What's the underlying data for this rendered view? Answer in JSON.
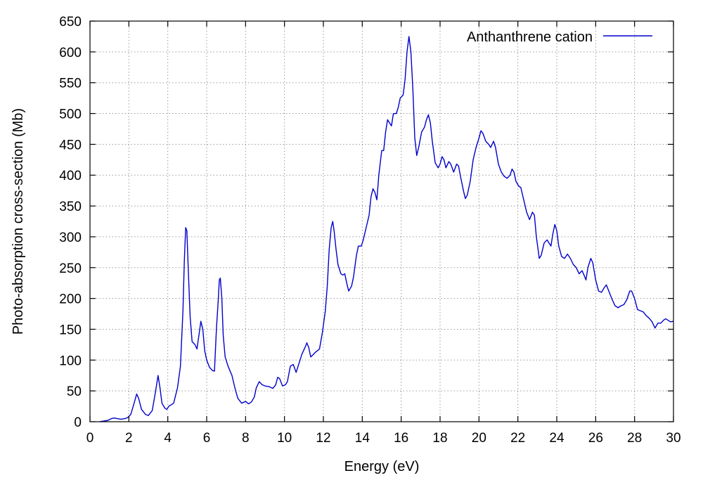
{
  "chart_data": {
    "type": "line",
    "xlabel": "Energy (eV)",
    "ylabel": "Photo-absorption cross-section (Mb)",
    "xlim": [
      0,
      30
    ],
    "ylim": [
      0,
      650
    ],
    "x_ticks": [
      0,
      2,
      4,
      6,
      8,
      10,
      12,
      14,
      16,
      18,
      20,
      22,
      24,
      26,
      28,
      30
    ],
    "y_ticks": [
      0,
      50,
      100,
      150,
      200,
      250,
      300,
      350,
      400,
      450,
      500,
      550,
      600,
      650
    ],
    "grid": true,
    "legend": {
      "placement": "top-right"
    },
    "series": [
      {
        "name": "Anthanthrene cation",
        "color": "#0000cc",
        "points": [
          [
            0.5,
            0
          ],
          [
            0.9,
            2
          ],
          [
            1.1,
            5
          ],
          [
            1.25,
            6
          ],
          [
            1.4,
            5
          ],
          [
            1.6,
            4
          ],
          [
            1.8,
            5
          ],
          [
            1.95,
            7
          ],
          [
            2.1,
            12
          ],
          [
            2.25,
            28
          ],
          [
            2.4,
            45
          ],
          [
            2.5,
            38
          ],
          [
            2.65,
            20
          ],
          [
            2.85,
            12
          ],
          [
            3.0,
            10
          ],
          [
            3.2,
            18
          ],
          [
            3.35,
            45
          ],
          [
            3.5,
            75
          ],
          [
            3.6,
            55
          ],
          [
            3.7,
            30
          ],
          [
            3.85,
            22
          ],
          [
            3.95,
            20
          ],
          [
            4.05,
            25
          ],
          [
            4.3,
            30
          ],
          [
            4.5,
            55
          ],
          [
            4.65,
            90
          ],
          [
            4.78,
            180
          ],
          [
            4.85,
            260
          ],
          [
            4.92,
            315
          ],
          [
            4.98,
            310
          ],
          [
            5.05,
            250
          ],
          [
            5.15,
            170
          ],
          [
            5.25,
            130
          ],
          [
            5.4,
            125
          ],
          [
            5.5,
            118
          ],
          [
            5.6,
            140
          ],
          [
            5.7,
            163
          ],
          [
            5.8,
            150
          ],
          [
            5.9,
            115
          ],
          [
            6.0,
            100
          ],
          [
            6.15,
            88
          ],
          [
            6.3,
            83
          ],
          [
            6.4,
            82
          ],
          [
            6.5,
            150
          ],
          [
            6.6,
            200
          ],
          [
            6.65,
            230
          ],
          [
            6.7,
            233
          ],
          [
            6.78,
            200
          ],
          [
            6.85,
            140
          ],
          [
            6.95,
            105
          ],
          [
            7.1,
            90
          ],
          [
            7.3,
            75
          ],
          [
            7.45,
            55
          ],
          [
            7.6,
            38
          ],
          [
            7.8,
            30
          ],
          [
            8.0,
            33
          ],
          [
            8.15,
            29
          ],
          [
            8.3,
            32
          ],
          [
            8.45,
            40
          ],
          [
            8.55,
            55
          ],
          [
            8.7,
            65
          ],
          [
            8.85,
            60
          ],
          [
            9.0,
            58
          ],
          [
            9.2,
            57
          ],
          [
            9.4,
            54
          ],
          [
            9.55,
            60
          ],
          [
            9.65,
            72
          ],
          [
            9.75,
            70
          ],
          [
            9.9,
            58
          ],
          [
            10.05,
            60
          ],
          [
            10.15,
            65
          ],
          [
            10.3,
            90
          ],
          [
            10.45,
            93
          ],
          [
            10.6,
            80
          ],
          [
            10.75,
            95
          ],
          [
            10.9,
            110
          ],
          [
            11.05,
            120
          ],
          [
            11.15,
            128
          ],
          [
            11.25,
            120
          ],
          [
            11.35,
            105
          ],
          [
            11.45,
            108
          ],
          [
            11.6,
            113
          ],
          [
            11.8,
            118
          ],
          [
            11.95,
            145
          ],
          [
            12.1,
            180
          ],
          [
            12.2,
            220
          ],
          [
            12.3,
            280
          ],
          [
            12.4,
            315
          ],
          [
            12.48,
            325
          ],
          [
            12.55,
            310
          ],
          [
            12.65,
            280
          ],
          [
            12.75,
            255
          ],
          [
            12.9,
            240
          ],
          [
            13.0,
            238
          ],
          [
            13.1,
            240
          ],
          [
            13.2,
            225
          ],
          [
            13.3,
            212
          ],
          [
            13.45,
            220
          ],
          [
            13.55,
            235
          ],
          [
            13.7,
            270
          ],
          [
            13.8,
            285
          ],
          [
            13.95,
            285
          ],
          [
            14.05,
            295
          ],
          [
            14.2,
            315
          ],
          [
            14.35,
            335
          ],
          [
            14.45,
            365
          ],
          [
            14.55,
            378
          ],
          [
            14.65,
            372
          ],
          [
            14.75,
            360
          ],
          [
            14.85,
            400
          ],
          [
            15.0,
            440
          ],
          [
            15.1,
            440
          ],
          [
            15.2,
            470
          ],
          [
            15.3,
            490
          ],
          [
            15.4,
            485
          ],
          [
            15.5,
            480
          ],
          [
            15.6,
            500
          ],
          [
            15.75,
            500
          ],
          [
            15.85,
            510
          ],
          [
            15.95,
            525
          ],
          [
            16.1,
            530
          ],
          [
            16.2,
            555
          ],
          [
            16.3,
            600
          ],
          [
            16.4,
            625
          ],
          [
            16.5,
            600
          ],
          [
            16.6,
            540
          ],
          [
            16.7,
            460
          ],
          [
            16.8,
            432
          ],
          [
            16.9,
            445
          ],
          [
            17.05,
            470
          ],
          [
            17.2,
            478
          ],
          [
            17.3,
            490
          ],
          [
            17.4,
            498
          ],
          [
            17.5,
            485
          ],
          [
            17.6,
            455
          ],
          [
            17.75,
            420
          ],
          [
            17.9,
            412
          ],
          [
            18.0,
            418
          ],
          [
            18.1,
            430
          ],
          [
            18.2,
            425
          ],
          [
            18.3,
            412
          ],
          [
            18.45,
            422
          ],
          [
            18.55,
            418
          ],
          [
            18.7,
            405
          ],
          [
            18.85,
            418
          ],
          [
            18.95,
            415
          ],
          [
            19.05,
            398
          ],
          [
            19.2,
            375
          ],
          [
            19.3,
            362
          ],
          [
            19.4,
            368
          ],
          [
            19.55,
            390
          ],
          [
            19.7,
            425
          ],
          [
            19.85,
            445
          ],
          [
            20.0,
            460
          ],
          [
            20.1,
            472
          ],
          [
            20.2,
            468
          ],
          [
            20.35,
            455
          ],
          [
            20.5,
            450
          ],
          [
            20.6,
            445
          ],
          [
            20.75,
            455
          ],
          [
            20.85,
            445
          ],
          [
            21.0,
            418
          ],
          [
            21.15,
            405
          ],
          [
            21.3,
            398
          ],
          [
            21.45,
            395
          ],
          [
            21.6,
            400
          ],
          [
            21.7,
            410
          ],
          [
            21.8,
            405
          ],
          [
            21.9,
            390
          ],
          [
            22.05,
            382
          ],
          [
            22.15,
            380
          ],
          [
            22.3,
            360
          ],
          [
            22.45,
            340
          ],
          [
            22.6,
            328
          ],
          [
            22.75,
            340
          ],
          [
            22.85,
            335
          ],
          [
            22.95,
            300
          ],
          [
            23.1,
            265
          ],
          [
            23.2,
            270
          ],
          [
            23.35,
            290
          ],
          [
            23.5,
            295
          ],
          [
            23.6,
            290
          ],
          [
            23.7,
            285
          ],
          [
            23.8,
            305
          ],
          [
            23.9,
            320
          ],
          [
            24.0,
            310
          ],
          [
            24.1,
            285
          ],
          [
            24.25,
            268
          ],
          [
            24.4,
            265
          ],
          [
            24.55,
            272
          ],
          [
            24.7,
            265
          ],
          [
            24.85,
            255
          ],
          [
            25.0,
            250
          ],
          [
            25.15,
            240
          ],
          [
            25.3,
            245
          ],
          [
            25.4,
            238
          ],
          [
            25.5,
            230
          ],
          [
            25.6,
            250
          ],
          [
            25.75,
            265
          ],
          [
            25.85,
            258
          ],
          [
            26.0,
            230
          ],
          [
            26.15,
            212
          ],
          [
            26.3,
            210
          ],
          [
            26.45,
            218
          ],
          [
            26.55,
            222
          ],
          [
            26.7,
            210
          ],
          [
            26.85,
            198
          ],
          [
            27.0,
            188
          ],
          [
            27.15,
            185
          ],
          [
            27.3,
            188
          ],
          [
            27.45,
            190
          ],
          [
            27.6,
            198
          ],
          [
            27.75,
            212
          ],
          [
            27.85,
            212
          ],
          [
            28.0,
            200
          ],
          [
            28.15,
            182
          ],
          [
            28.3,
            180
          ],
          [
            28.45,
            178
          ],
          [
            28.6,
            172
          ],
          [
            28.75,
            168
          ],
          [
            28.9,
            162
          ],
          [
            29.05,
            152
          ],
          [
            29.2,
            160
          ],
          [
            29.35,
            160
          ],
          [
            29.5,
            165
          ],
          [
            29.6,
            167
          ],
          [
            29.7,
            165
          ],
          [
            29.85,
            162
          ],
          [
            30.0,
            163
          ]
        ]
      }
    ]
  }
}
